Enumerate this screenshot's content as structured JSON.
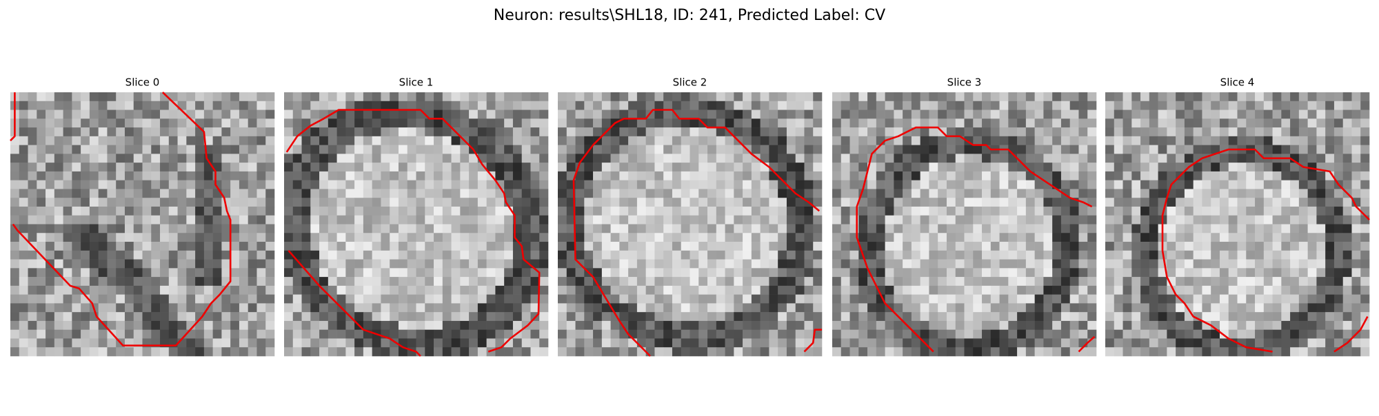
{
  "title": "Neuron: results\\SHL18, ID: 241, Predicted Label: CV",
  "panels": [
    {
      "title": "Slice 0"
    },
    {
      "title": "Slice 1"
    },
    {
      "title": "Slice 2"
    },
    {
      "title": "Slice 3"
    },
    {
      "title": "Slice 4"
    }
  ]
}
